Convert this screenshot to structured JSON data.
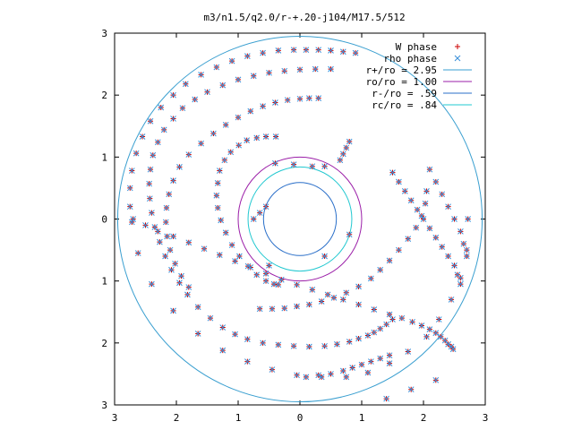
{
  "chart_data": {
    "type": "scatter",
    "title": "m3/n1.5/q2.0/r-+.20-j104/M17.5/512",
    "xlabel": "",
    "ylabel": "",
    "xlim": [
      -3,
      3
    ],
    "ylim": [
      -3,
      3
    ],
    "x_tick_values": [
      -3,
      -2,
      -1,
      0,
      1,
      2,
      3
    ],
    "x_tick_labels": [
      "3",
      "2",
      "1",
      "0",
      "1",
      "2",
      "3"
    ],
    "y_tick_values": [
      3,
      2,
      1,
      0,
      -1,
      -2,
      -3
    ],
    "y_tick_labels": [
      "3",
      "2",
      "1",
      "0",
      "1",
      "2",
      "3"
    ],
    "grid": false,
    "legend_position": "top-right",
    "series": [
      {
        "name": "W phase",
        "kind": "points",
        "marker": "plus",
        "color": "#cc0000",
        "x": [
          -0.39,
          -0.55,
          -0.7,
          -0.86,
          -0.99,
          -1.12,
          -1.22,
          -1.3,
          -1.33,
          -1.35,
          -1.33,
          -1.28,
          -1.2,
          -1.1,
          -0.98,
          -0.84,
          -0.7,
          -0.55,
          -0.42,
          -0.35,
          -0.65,
          -0.45,
          -0.25,
          -0.05,
          0.15,
          0.35,
          0.55,
          0.75,
          0.95,
          1.15,
          1.3,
          1.45,
          1.6,
          1.75,
          1.88,
          1.97,
          2.03,
          2.05,
          0.3,
          0.15,
          0.0,
          -0.2,
          -0.4,
          -0.6,
          -0.8,
          -1.0,
          -1.2,
          -1.4,
          -1.6,
          -1.8,
          -1.95,
          -2.05,
          -2.12,
          -2.16,
          -2.17,
          -2.15,
          -2.1,
          -2.02,
          -1.92,
          -1.8,
          0.5,
          0.25,
          0.0,
          -0.25,
          -0.5,
          -0.75,
          -1.0,
          -1.25,
          -1.5,
          -1.7,
          -1.9,
          -2.05,
          -2.2,
          -2.3,
          -2.38,
          -2.42,
          -2.44,
          -2.43,
          -2.4,
          -2.35,
          -2.27,
          -2.18,
          -2.08,
          -1.95,
          -1.82,
          -1.65,
          -1.45,
          -1.25,
          -1.05,
          -0.85,
          -0.6,
          -0.35,
          -0.1,
          0.15,
          0.4,
          0.6,
          0.8,
          0.95,
          1.1,
          1.2,
          1.3,
          1.4,
          1.5,
          0.9,
          0.7,
          0.5,
          0.3,
          0.1,
          -0.1,
          -0.35,
          -0.6,
          -0.85,
          -1.1,
          -1.35,
          -1.6,
          -1.85,
          -2.05,
          -2.25,
          -2.42,
          -2.55,
          -2.65,
          -2.72,
          -2.75,
          -2.75,
          -2.72,
          -2.62,
          -2.4,
          -2.05,
          -1.65,
          -1.25,
          -0.85,
          -0.45,
          -0.05,
          0.35,
          0.75,
          1.1,
          1.45,
          1.75,
          2.05,
          2.25,
          2.45,
          2.6,
          2.7,
          2.72,
          -2.7,
          -2.5,
          -2.3,
          -2.05,
          -1.8,
          -1.55,
          -1.3,
          -1.05,
          -0.8,
          -0.55,
          -0.3,
          -0.05,
          0.2,
          0.45,
          0.7,
          0.95,
          1.2,
          1.45,
          1.65,
          1.82,
          1.97,
          2.1,
          2.2,
          2.28,
          2.35,
          2.4,
          2.45,
          2.48,
          0.8,
          0.75,
          0.7,
          0.65,
          0.4,
          0.2,
          -0.1,
          -0.4,
          -0.55,
          -0.65,
          -0.75,
          1.5,
          1.6,
          1.7,
          1.8,
          1.9,
          2.0,
          2.1,
          2.2,
          2.3,
          2.4,
          2.5,
          2.55,
          2.6,
          1.45,
          1.3,
          1.15,
          1.0,
          0.85,
          0.7,
          0.5,
          0.3,
          0.1,
          2.1,
          2.2,
          2.3,
          2.4,
          2.5,
          2.6,
          2.65,
          2.7,
          1.4,
          1.8,
          2.2,
          0.4,
          -0.5,
          0.8
        ],
        "y": [
          1.33,
          1.33,
          1.31,
          1.27,
          1.19,
          1.08,
          0.95,
          0.78,
          0.58,
          0.38,
          0.18,
          -0.02,
          -0.22,
          -0.42,
          -0.6,
          -0.76,
          -0.9,
          -1.0,
          -1.05,
          -1.06,
          -1.45,
          -1.45,
          -1.44,
          -1.41,
          -1.38,
          -1.33,
          -1.27,
          -1.19,
          -1.09,
          -0.96,
          -0.82,
          -0.67,
          -0.5,
          -0.32,
          -0.14,
          0.05,
          0.25,
          0.45,
          1.95,
          1.95,
          1.94,
          1.92,
          1.88,
          1.82,
          1.74,
          1.64,
          1.52,
          1.38,
          1.22,
          1.04,
          0.84,
          0.62,
          0.4,
          0.18,
          -0.05,
          -0.28,
          -0.5,
          -0.72,
          -0.92,
          -1.1,
          2.42,
          2.42,
          2.41,
          2.39,
          2.36,
          2.31,
          2.25,
          2.16,
          2.05,
          1.93,
          1.79,
          1.62,
          1.44,
          1.24,
          1.03,
          0.8,
          0.57,
          0.33,
          0.1,
          -0.13,
          -0.37,
          -0.6,
          -0.82,
          -1.03,
          -1.22,
          -1.42,
          -1.6,
          -1.75,
          -1.86,
          -1.94,
          -2.0,
          -2.03,
          -2.05,
          -2.06,
          -2.05,
          -2.02,
          -1.98,
          -1.93,
          -1.88,
          -1.83,
          -1.77,
          -1.7,
          -1.62,
          2.68,
          2.7,
          2.72,
          2.73,
          2.73,
          2.73,
          2.72,
          2.68,
          2.63,
          2.55,
          2.45,
          2.33,
          2.18,
          2.0,
          1.8,
          1.58,
          1.33,
          1.06,
          0.78,
          0.5,
          0.2,
          -0.05,
          -0.55,
          -1.05,
          -1.48,
          -1.85,
          -2.12,
          -2.3,
          -2.43,
          -2.52,
          -2.55,
          -2.55,
          -2.48,
          -2.33,
          -2.14,
          -1.9,
          -1.62,
          -1.3,
          -0.95,
          -0.5,
          0.0,
          0.0,
          -0.1,
          -0.2,
          -0.28,
          -0.38,
          -0.48,
          -0.58,
          -0.68,
          -0.78,
          -0.88,
          -0.98,
          -1.06,
          -1.14,
          -1.22,
          -1.3,
          -1.38,
          -1.46,
          -1.54,
          -1.6,
          -1.66,
          -1.72,
          -1.78,
          -1.84,
          -1.9,
          -1.96,
          -2.02,
          -2.06,
          -2.1,
          1.25,
          1.15,
          1.05,
          0.95,
          0.85,
          0.85,
          0.88,
          0.9,
          0.2,
          0.1,
          0.0,
          0.75,
          0.6,
          0.45,
          0.3,
          0.15,
          0.0,
          -0.15,
          -0.3,
          -0.45,
          -0.6,
          -0.75,
          -0.9,
          -1.05,
          -2.2,
          -2.25,
          -2.3,
          -2.35,
          -2.4,
          -2.45,
          -2.5,
          -2.52,
          -2.55,
          0.8,
          0.6,
          0.4,
          0.2,
          0.0,
          -0.2,
          -0.4,
          -0.6,
          -2.9,
          -2.75,
          -2.6,
          -0.6,
          -0.75,
          -0.25
        ]
      },
      {
        "name": "rho phase",
        "kind": "points",
        "marker": "cross",
        "color": "#3a8fd9",
        "x": [
          -0.39,
          -0.55,
          -0.7,
          -0.86,
          -0.99,
          -1.12,
          -1.22,
          -1.3,
          -1.33,
          -1.35,
          -1.33,
          -1.28,
          -1.2,
          -1.1,
          -0.98,
          -0.84,
          -0.7,
          -0.55,
          -0.42,
          -0.35,
          -0.65,
          -0.45,
          -0.25,
          -0.05,
          0.15,
          0.35,
          0.55,
          0.75,
          0.95,
          1.15,
          1.3,
          1.45,
          1.6,
          1.75,
          1.88,
          1.97,
          2.03,
          2.05,
          0.3,
          0.15,
          0.0,
          -0.2,
          -0.4,
          -0.6,
          -0.8,
          -1.0,
          -1.2,
          -1.4,
          -1.6,
          -1.8,
          -1.95,
          -2.05,
          -2.12,
          -2.16,
          -2.17,
          -2.15,
          -2.1,
          -2.02,
          -1.92,
          -1.8,
          0.5,
          0.25,
          0.0,
          -0.25,
          -0.5,
          -0.75,
          -1.0,
          -1.25,
          -1.5,
          -1.7,
          -1.9,
          -2.05,
          -2.2,
          -2.3,
          -2.38,
          -2.42,
          -2.44,
          -2.43,
          -2.4,
          -2.35,
          -2.27,
          -2.18,
          -2.08,
          -1.95,
          -1.82,
          -1.65,
          -1.45,
          -1.25,
          -1.05,
          -0.85,
          -0.6,
          -0.35,
          -0.1,
          0.15,
          0.4,
          0.6,
          0.8,
          0.95,
          1.1,
          1.2,
          1.3,
          1.4,
          1.5,
          0.9,
          0.7,
          0.5,
          0.3,
          0.1,
          -0.1,
          -0.35,
          -0.6,
          -0.85,
          -1.1,
          -1.35,
          -1.6,
          -1.85,
          -2.05,
          -2.25,
          -2.42,
          -2.55,
          -2.65,
          -2.72,
          -2.75,
          -2.75,
          -2.72,
          -2.62,
          -2.4,
          -2.05,
          -1.65,
          -1.25,
          -0.85,
          -0.45,
          -0.05,
          0.35,
          0.75,
          1.1,
          1.45,
          1.75,
          2.05,
          2.25,
          2.45,
          2.6,
          2.7,
          2.72,
          -2.7,
          -2.5,
          -2.3,
          -2.05,
          -1.8,
          -1.55,
          -1.3,
          -1.05,
          -0.8,
          -0.55,
          -0.3,
          -0.05,
          0.2,
          0.45,
          0.7,
          0.95,
          1.2,
          1.45,
          1.65,
          1.82,
          1.97,
          2.1,
          2.2,
          2.28,
          2.35,
          2.4,
          2.45,
          2.48,
          0.8,
          0.75,
          0.7,
          0.65,
          0.4,
          0.2,
          -0.1,
          -0.4,
          -0.55,
          -0.65,
          -0.75,
          1.5,
          1.6,
          1.7,
          1.8,
          1.9,
          2.0,
          2.1,
          2.2,
          2.3,
          2.4,
          2.5,
          2.55,
          2.6,
          1.45,
          1.3,
          1.15,
          1.0,
          0.85,
          0.7,
          0.5,
          0.3,
          0.1,
          2.1,
          2.2,
          2.3,
          2.4,
          2.5,
          2.6,
          2.65,
          2.7,
          1.4,
          1.8,
          2.2,
          0.4,
          -0.5,
          0.8
        ],
        "y": [
          1.33,
          1.33,
          1.31,
          1.27,
          1.19,
          1.08,
          0.95,
          0.78,
          0.58,
          0.38,
          0.18,
          -0.02,
          -0.22,
          -0.42,
          -0.6,
          -0.76,
          -0.9,
          -1.0,
          -1.05,
          -1.06,
          -1.45,
          -1.45,
          -1.44,
          -1.41,
          -1.38,
          -1.33,
          -1.27,
          -1.19,
          -1.09,
          -0.96,
          -0.82,
          -0.67,
          -0.5,
          -0.32,
          -0.14,
          0.05,
          0.25,
          0.45,
          1.95,
          1.95,
          1.94,
          1.92,
          1.88,
          1.82,
          1.74,
          1.64,
          1.52,
          1.38,
          1.22,
          1.04,
          0.84,
          0.62,
          0.4,
          0.18,
          -0.05,
          -0.28,
          -0.5,
          -0.72,
          -0.92,
          -1.1,
          2.42,
          2.42,
          2.41,
          2.39,
          2.36,
          2.31,
          2.25,
          2.16,
          2.05,
          1.93,
          1.79,
          1.62,
          1.44,
          1.24,
          1.03,
          0.8,
          0.57,
          0.33,
          0.1,
          -0.13,
          -0.37,
          -0.6,
          -0.82,
          -1.03,
          -1.22,
          -1.42,
          -1.6,
          -1.75,
          -1.86,
          -1.94,
          -2.0,
          -2.03,
          -2.05,
          -2.06,
          -2.05,
          -2.02,
          -1.98,
          -1.93,
          -1.88,
          -1.83,
          -1.77,
          -1.7,
          -1.62,
          2.68,
          2.7,
          2.72,
          2.73,
          2.73,
          2.73,
          2.72,
          2.68,
          2.63,
          2.55,
          2.45,
          2.33,
          2.18,
          2.0,
          1.8,
          1.58,
          1.33,
          1.06,
          0.78,
          0.5,
          0.2,
          -0.05,
          -0.55,
          -1.05,
          -1.48,
          -1.85,
          -2.12,
          -2.3,
          -2.43,
          -2.52,
          -2.55,
          -2.55,
          -2.48,
          -2.33,
          -2.14,
          -1.9,
          -1.62,
          -1.3,
          -0.95,
          -0.5,
          0.0,
          0.0,
          -0.1,
          -0.2,
          -0.28,
          -0.38,
          -0.48,
          -0.58,
          -0.68,
          -0.78,
          -0.88,
          -0.98,
          -1.06,
          -1.14,
          -1.22,
          -1.3,
          -1.38,
          -1.46,
          -1.54,
          -1.6,
          -1.66,
          -1.72,
          -1.78,
          -1.84,
          -1.9,
          -1.96,
          -2.02,
          -2.06,
          -2.1,
          1.25,
          1.15,
          1.05,
          0.95,
          0.85,
          0.85,
          0.88,
          0.9,
          0.2,
          0.1,
          0.0,
          0.75,
          0.6,
          0.45,
          0.3,
          0.15,
          0.0,
          -0.15,
          -0.3,
          -0.45,
          -0.6,
          -0.75,
          -0.9,
          -1.05,
          -2.2,
          -2.25,
          -2.3,
          -2.35,
          -2.4,
          -2.45,
          -2.5,
          -2.52,
          -2.55,
          0.8,
          0.6,
          0.4,
          0.2,
          0.0,
          -0.2,
          -0.4,
          -0.6,
          -2.9,
          -2.75,
          -2.6,
          -0.6,
          -0.75,
          -0.25
        ]
      },
      {
        "name": "r+/ro = 2.95",
        "kind": "circle",
        "radius": 2.95,
        "color": "#3a9fd0"
      },
      {
        "name": "ro/ro = 1.00",
        "kind": "circle",
        "radius": 1.0,
        "color": "#9b1fa8"
      },
      {
        "name": "r-/ro = .59",
        "kind": "circle",
        "radius": 0.59,
        "color": "#2a6fc9"
      },
      {
        "name": "rc/ro = .84",
        "kind": "circle",
        "radius": 0.84,
        "color": "#22c8d0"
      }
    ]
  }
}
